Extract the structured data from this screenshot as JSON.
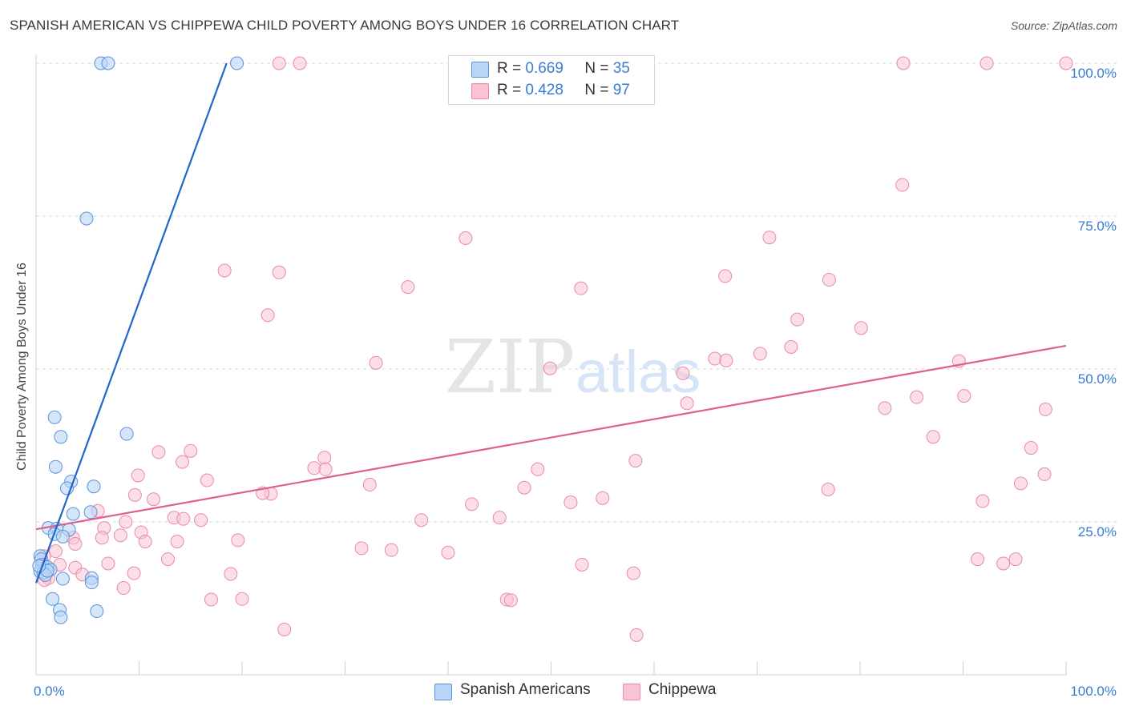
{
  "title": "SPANISH AMERICAN VS CHIPPEWA CHILD POVERTY AMONG BOYS UNDER 16 CORRELATION CHART",
  "source": "Source: ZipAtlas.com",
  "watermark": {
    "zip": "ZIP",
    "atlas": "atlas"
  },
  "legend": {
    "rows": [
      {
        "r_label": "R =",
        "r_value": "0.669",
        "n_label": "N =",
        "n_value": "35"
      },
      {
        "r_label": "R =",
        "r_value": "0.428",
        "n_label": "N =",
        "n_value": "97"
      }
    ],
    "bottom": [
      "Spanish Americans",
      "Chippewa"
    ]
  },
  "colors": {
    "series1_fill": "#b9d4f7",
    "series1_stroke": "#5b93d9",
    "series1_line": "#2166c8",
    "series2_fill": "#f9c3d3",
    "series2_stroke": "#e98aa8",
    "series2_line": "#e0608d",
    "axis_text": "#3a7bd5",
    "grid": "#d9d9d9"
  },
  "chart_data": {
    "type": "scatter",
    "title": "SPANISH AMERICAN VS CHIPPEWA CHILD POVERTY AMONG BOYS UNDER 16 CORRELATION CHART",
    "xlabel": "",
    "ylabel": "Child Poverty Among Boys Under 16",
    "xlim": [
      0,
      100
    ],
    "ylim": [
      0,
      100
    ],
    "x_tick_labels": [
      "0.0%",
      "100.0%"
    ],
    "y_ticks": [
      25,
      50,
      75,
      100
    ],
    "y_tick_labels": [
      "25.0%",
      "50.0%",
      "75.0%",
      "100.0%"
    ],
    "series": [
      {
        "name": "Spanish Americans",
        "R": 0.669,
        "N": 35,
        "trend": {
          "x": [
            0,
            18.5
          ],
          "y": [
            15.0,
            100.0
          ]
        },
        "points": [
          [
            6.3,
            100
          ],
          [
            7.0,
            100
          ],
          [
            19.5,
            100
          ],
          [
            4.9,
            74.6
          ],
          [
            1.8,
            42.1
          ],
          [
            2.4,
            38.9
          ],
          [
            8.8,
            39.4
          ],
          [
            1.9,
            34.0
          ],
          [
            3.4,
            31.6
          ],
          [
            5.6,
            30.8
          ],
          [
            3.0,
            30.5
          ],
          [
            3.6,
            26.3
          ],
          [
            5.3,
            26.6
          ],
          [
            1.2,
            24.0
          ],
          [
            2.0,
            23.9
          ],
          [
            3.2,
            23.7
          ],
          [
            1.8,
            23.0
          ],
          [
            2.6,
            22.6
          ],
          [
            0.4,
            19.4
          ],
          [
            0.5,
            18.9
          ],
          [
            0.6,
            18.0
          ],
          [
            1.1,
            17.6
          ],
          [
            1.4,
            17.2
          ],
          [
            0.4,
            16.9
          ],
          [
            0.7,
            16.7
          ],
          [
            0.9,
            16.3
          ],
          [
            2.6,
            15.7
          ],
          [
            5.4,
            15.8
          ],
          [
            5.4,
            15.1
          ],
          [
            1.6,
            12.4
          ],
          [
            2.3,
            10.6
          ],
          [
            5.9,
            10.4
          ],
          [
            2.4,
            9.4
          ],
          [
            1.1,
            17.0
          ],
          [
            0.3,
            17.8
          ]
        ]
      },
      {
        "name": "Chippewa",
        "R": 0.428,
        "N": 97,
        "trend": {
          "x": [
            0,
            100
          ],
          "y": [
            23.8,
            53.8
          ]
        },
        "points": [
          [
            23.6,
            100
          ],
          [
            25.6,
            100
          ],
          [
            84.2,
            100
          ],
          [
            92.3,
            100
          ],
          [
            100,
            100
          ],
          [
            84.1,
            80.1
          ],
          [
            41.7,
            71.4
          ],
          [
            71.2,
            71.5
          ],
          [
            18.3,
            66.1
          ],
          [
            23.6,
            65.8
          ],
          [
            66.9,
            65.2
          ],
          [
            77.0,
            64.6
          ],
          [
            36.1,
            63.4
          ],
          [
            52.9,
            63.2
          ],
          [
            22.5,
            58.8
          ],
          [
            73.9,
            58.1
          ],
          [
            80.1,
            56.7
          ],
          [
            73.3,
            53.6
          ],
          [
            70.3,
            52.5
          ],
          [
            65.9,
            51.7
          ],
          [
            67.0,
            51.4
          ],
          [
            89.6,
            51.3
          ],
          [
            33.0,
            51.0
          ],
          [
            49.9,
            50.1
          ],
          [
            62.8,
            49.3
          ],
          [
            63.2,
            44.4
          ],
          [
            85.5,
            45.4
          ],
          [
            90.1,
            45.6
          ],
          [
            82.4,
            43.6
          ],
          [
            98.0,
            43.4
          ],
          [
            87.1,
            38.9
          ],
          [
            96.6,
            37.1
          ],
          [
            11.9,
            36.4
          ],
          [
            15.0,
            36.6
          ],
          [
            28.0,
            35.5
          ],
          [
            58.2,
            35.0
          ],
          [
            14.2,
            34.8
          ],
          [
            27.0,
            33.8
          ],
          [
            28.1,
            33.6
          ],
          [
            48.7,
            33.6
          ],
          [
            9.9,
            32.6
          ],
          [
            16.6,
            31.8
          ],
          [
            97.9,
            32.8
          ],
          [
            32.4,
            31.1
          ],
          [
            47.4,
            30.6
          ],
          [
            95.6,
            31.3
          ],
          [
            9.6,
            29.4
          ],
          [
            22.8,
            29.6
          ],
          [
            76.9,
            30.3
          ],
          [
            11.4,
            28.7
          ],
          [
            55.0,
            28.9
          ],
          [
            42.3,
            27.9
          ],
          [
            51.9,
            28.2
          ],
          [
            91.9,
            28.4
          ],
          [
            6.0,
            26.8
          ],
          [
            13.4,
            25.7
          ],
          [
            14.3,
            25.5
          ],
          [
            16.0,
            25.3
          ],
          [
            37.4,
            25.3
          ],
          [
            45.0,
            25.7
          ],
          [
            8.7,
            25.0
          ],
          [
            6.6,
            24.0
          ],
          [
            10.2,
            23.3
          ],
          [
            8.2,
            22.8
          ],
          [
            3.6,
            22.4
          ],
          [
            6.4,
            22.4
          ],
          [
            3.8,
            21.4
          ],
          [
            10.6,
            21.8
          ],
          [
            13.7,
            21.8
          ],
          [
            19.6,
            22.0
          ],
          [
            31.6,
            20.7
          ],
          [
            22.0,
            29.7
          ],
          [
            1.9,
            20.2
          ],
          [
            40.0,
            20.0
          ],
          [
            34.5,
            20.4
          ],
          [
            12.8,
            18.9
          ],
          [
            0.8,
            19.4
          ],
          [
            7.0,
            18.2
          ],
          [
            2.3,
            18.0
          ],
          [
            53.0,
            18.0
          ],
          [
            91.4,
            18.9
          ],
          [
            95.1,
            18.9
          ],
          [
            93.9,
            18.2
          ],
          [
            3.8,
            17.5
          ],
          [
            4.5,
            16.4
          ],
          [
            9.5,
            16.6
          ],
          [
            18.9,
            16.5
          ],
          [
            1.2,
            15.8
          ],
          [
            0.8,
            15.5
          ],
          [
            58.0,
            16.6
          ],
          [
            8.5,
            14.2
          ],
          [
            17.0,
            12.3
          ],
          [
            20.0,
            12.4
          ],
          [
            45.7,
            12.3
          ],
          [
            46.1,
            12.2
          ],
          [
            24.1,
            7.4
          ],
          [
            58.3,
            6.5
          ]
        ]
      }
    ]
  }
}
